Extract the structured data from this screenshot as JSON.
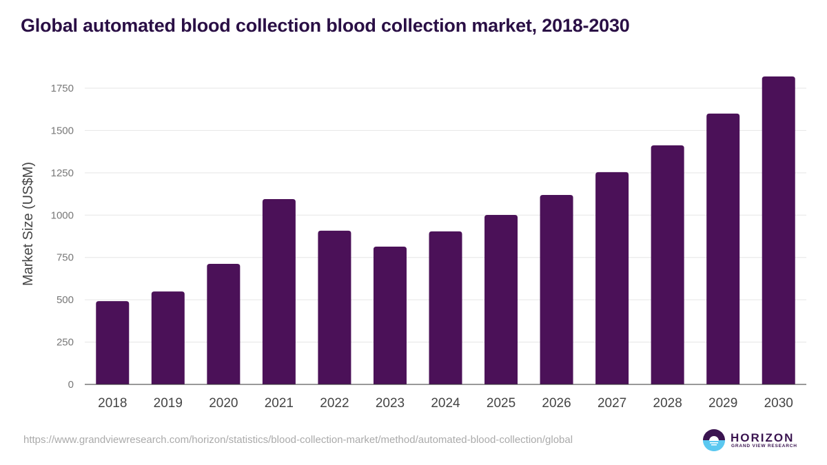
{
  "title": "Global automated blood collection blood collection market, 2018-2030",
  "source_url": "https://www.grandviewresearch.com/horizon/statistics/blood-collection-market/method/automated-blood-collection/global",
  "logo": {
    "name": "HORIZON",
    "subtitle": "GRAND VIEW RESEARCH"
  },
  "colors": {
    "bar": "#4b1158",
    "title": "#2a0f45",
    "grid": "#e5e5e5",
    "logo_top": "#3a1450",
    "logo_bottom": "#5bc8f0"
  },
  "chart_data": {
    "type": "bar",
    "title": "Global automated blood collection blood collection market, 2018-2030",
    "xlabel": "",
    "ylabel": "Market Size (US$M)",
    "categories": [
      "2018",
      "2019",
      "2020",
      "2021",
      "2022",
      "2023",
      "2024",
      "2025",
      "2026",
      "2027",
      "2028",
      "2029",
      "2030"
    ],
    "values": [
      492,
      549,
      712,
      1095,
      908,
      814,
      904,
      1001,
      1119,
      1254,
      1412,
      1600,
      1819
    ],
    "yticks": [
      0,
      250,
      500,
      750,
      1000,
      1250,
      1500,
      1750
    ],
    "ylim": [
      0,
      1750
    ],
    "grid": true,
    "legend": "none"
  }
}
